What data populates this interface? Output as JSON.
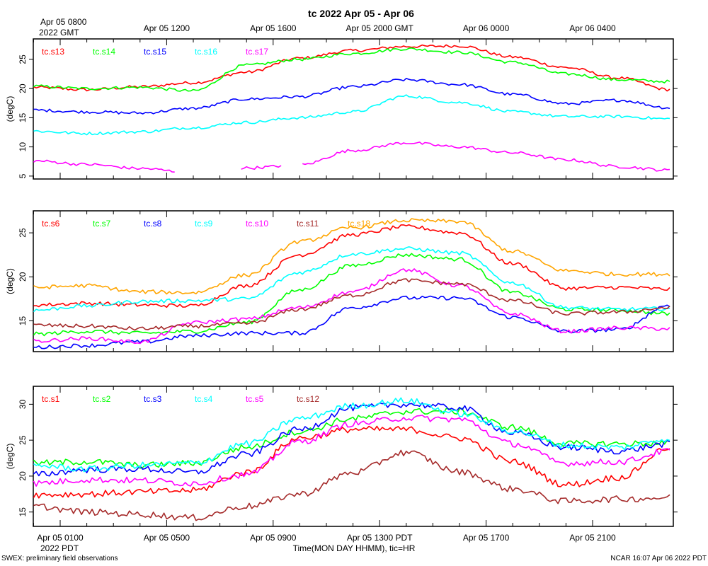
{
  "title": "tc 2022 Apr 05 - Apr 06",
  "top_axis": {
    "first_label": "Apr 05 0800",
    "first_sub": "2022 GMT",
    "labels": [
      "Apr 05 1200",
      "Apr 05 1600",
      "Apr 05 2000 GMT",
      "Apr 06 0000",
      "Apr 06 0400"
    ]
  },
  "bottom_axis": {
    "labels": [
      "Apr 05 0100",
      "Apr 05 0500",
      "Apr 05 0900",
      "Apr 05 1300 PDT",
      "Apr 05 1700",
      "Apr 05 2100"
    ],
    "sub_label": "2022 PDT",
    "caption": "Time(MON DAY HHMM), tic=HR"
  },
  "footer": {
    "left": "SWEX: preliminary field observations",
    "right": "NCAR 16:07 Apr 06 2022 PDT"
  },
  "chart_data": [
    {
      "type": "line",
      "xlabel": "Time(MON DAY HHMM), tic=HR",
      "ylabel": "(degC)",
      "x_unit": "hours from Apr 05 0000 PDT",
      "xlim": [
        0,
        23.9
      ],
      "ylim": [
        4.5,
        28.5
      ],
      "yticks": [
        5,
        10,
        15,
        20,
        25
      ],
      "grid": false,
      "legend": "top-left",
      "x": [
        0,
        2,
        4,
        6,
        8,
        10,
        12,
        14,
        16,
        18,
        20,
        22,
        23.9
      ],
      "series": [
        {
          "name": "tc.s13",
          "color": "#ff0000",
          "values": [
            20.2,
            19.8,
            20.3,
            21.0,
            22.8,
            25.2,
            26.5,
            27.2,
            27.3,
            25.4,
            23.6,
            21.8,
            19.8
          ]
        },
        {
          "name": "tc.s14",
          "color": "#00ff00",
          "values": [
            20.4,
            20.0,
            20.2,
            19.6,
            24.0,
            25.0,
            26.0,
            26.8,
            26.2,
            24.5,
            22.5,
            21.5,
            21.2
          ]
        },
        {
          "name": "tc.s15",
          "color": "#0000ff",
          "values": [
            16.3,
            16.0,
            15.8,
            16.6,
            18.2,
            18.6,
            20.3,
            21.5,
            20.7,
            19.0,
            17.4,
            18.0,
            16.7
          ]
        },
        {
          "name": "tc.s16",
          "color": "#00ffff",
          "values": [
            12.7,
            12.3,
            12.6,
            13.3,
            14.2,
            15.0,
            16.0,
            18.7,
            17.6,
            16.0,
            15.2,
            15.2,
            14.8
          ]
        },
        {
          "name": "tc.s17",
          "color": "#ff00ff",
          "values": [
            7.6,
            7.0,
            6.3,
            5.6,
            6.4,
            6.9,
            9.4,
            10.7,
            10.0,
            9.0,
            7.8,
            6.6,
            6.0
          ],
          "gaps": [
            [
              5.3,
              7.7
            ],
            [
              9.3,
              10.0
            ]
          ]
        }
      ]
    },
    {
      "type": "line",
      "xlabel": "Time(MON DAY HHMM), tic=HR",
      "ylabel": "(degC)",
      "x_unit": "hours from Apr 05 0000 PDT",
      "xlim": [
        0,
        23.9
      ],
      "ylim": [
        11.5,
        27.5
      ],
      "yticks": [
        15,
        20,
        25
      ],
      "grid": false,
      "legend": "top-left",
      "x": [
        0,
        2,
        4,
        6,
        8,
        10,
        12,
        14,
        16,
        18,
        20,
        22,
        23.9
      ],
      "series": [
        {
          "name": "tc.s6",
          "color": "#ff0000",
          "values": [
            16.8,
            17.0,
            16.8,
            16.7,
            19.0,
            22.5,
            24.8,
            25.7,
            25.0,
            21.5,
            18.7,
            18.8,
            18.6
          ]
        },
        {
          "name": "tc.s7",
          "color": "#00ff00",
          "values": [
            13.5,
            13.8,
            13.6,
            13.8,
            14.8,
            18.5,
            21.3,
            22.5,
            22.0,
            18.2,
            16.3,
            16.2,
            15.8
          ]
        },
        {
          "name": "tc.s8",
          "color": "#0000ff",
          "values": [
            12.0,
            12.2,
            12.6,
            13.3,
            13.6,
            13.6,
            16.5,
            17.6,
            17.6,
            15.4,
            13.8,
            14.0,
            16.8
          ]
        },
        {
          "name": "tc.s9",
          "color": "#00ffff",
          "values": [
            16.2,
            16.7,
            17.2,
            17.3,
            17.5,
            20.5,
            22.6,
            23.2,
            22.7,
            19.3,
            16.5,
            16.3,
            16.4
          ]
        },
        {
          "name": "tc.s10",
          "color": "#ff00ff",
          "values": [
            12.7,
            13.0,
            12.6,
            14.8,
            15.2,
            16.5,
            18.3,
            20.8,
            19.0,
            15.8,
            13.8,
            14.2,
            14.1
          ]
        },
        {
          "name": "tc.s11",
          "color": "#a52a2a",
          "values": [
            14.5,
            14.4,
            14.1,
            14.4,
            14.7,
            16.3,
            17.9,
            19.6,
            19.2,
            17.3,
            15.8,
            16.0,
            16.5
          ]
        },
        {
          "name": "tc.s18",
          "color": "#ffa500",
          "values": [
            18.8,
            19.0,
            18.3,
            18.2,
            20.2,
            24.0,
            25.6,
            26.4,
            26.3,
            22.9,
            20.7,
            20.3,
            20.3
          ]
        }
      ]
    },
    {
      "type": "line",
      "xlabel": "Time(MON DAY HHMM), tic=HR",
      "ylabel": "(degC)",
      "x_unit": "hours from Apr 05 0000 PDT",
      "xlim": [
        0,
        23.9
      ],
      "ylim": [
        13,
        32.5
      ],
      "yticks": [
        15,
        20,
        25,
        30
      ],
      "grid": false,
      "legend": "top-left",
      "x": [
        0,
        2,
        4,
        6,
        8,
        10,
        12,
        14,
        16,
        18,
        20,
        22,
        23.9
      ],
      "series": [
        {
          "name": "tc.s1",
          "color": "#ff0000",
          "values": [
            17.4,
            17.5,
            17.8,
            18.0,
            20.5,
            25.3,
            26.5,
            26.5,
            25.3,
            22.0,
            18.8,
            19.8,
            24.0
          ]
        },
        {
          "name": "tc.s2",
          "color": "#00ff00",
          "values": [
            21.8,
            22.0,
            21.5,
            21.8,
            24.0,
            26.2,
            28.0,
            29.0,
            29.0,
            26.8,
            24.5,
            24.5,
            24.6
          ]
        },
        {
          "name": "tc.s3",
          "color": "#0000ff",
          "values": [
            20.2,
            20.9,
            21.0,
            20.5,
            23.0,
            26.5,
            29.5,
            30.0,
            29.5,
            26.0,
            24.0,
            23.5,
            24.5
          ]
        },
        {
          "name": "tc.s4",
          "color": "#00ffff",
          "values": [
            21.5,
            21.0,
            21.5,
            21.8,
            24.5,
            28.0,
            29.8,
            30.5,
            28.7,
            26.3,
            24.3,
            24.0,
            25.2
          ]
        },
        {
          "name": "tc.s5",
          "color": "#ff00ff",
          "values": [
            19.0,
            19.5,
            19.4,
            19.0,
            20.2,
            24.8,
            27.3,
            28.1,
            27.9,
            24.5,
            21.8,
            22.0,
            23.5
          ]
        },
        {
          "name": "tc.s12",
          "color": "#a52a2a",
          "values": [
            15.8,
            15.0,
            14.7,
            14.2,
            15.8,
            17.5,
            20.5,
            23.3,
            20.6,
            18.2,
            16.5,
            16.8,
            17.0
          ]
        }
      ]
    }
  ]
}
